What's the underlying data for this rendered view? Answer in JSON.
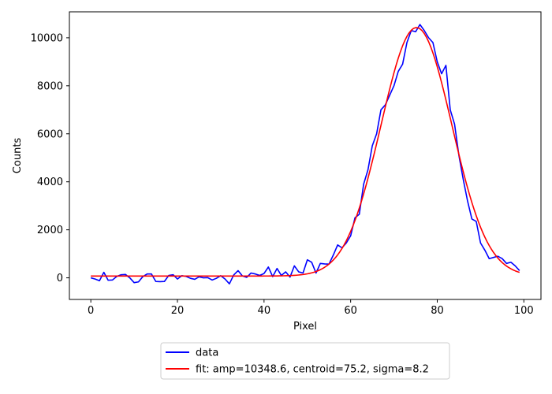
{
  "chart_data": {
    "type": "line",
    "xlabel": "Pixel",
    "ylabel": "Counts",
    "xlim": [
      -4.95,
      103.95
    ],
    "ylim": [
      -900,
      11080
    ],
    "xticks": [
      0,
      20,
      40,
      60,
      80,
      100
    ],
    "yticks": [
      0,
      2000,
      4000,
      6000,
      8000,
      10000
    ],
    "xtick_labels": [
      "0",
      "20",
      "40",
      "60",
      "80",
      "100"
    ],
    "ytick_labels": [
      "0",
      "2000",
      "4000",
      "6000",
      "8000",
      "10000"
    ],
    "grid": false,
    "legend_position": "below-center",
    "series": [
      {
        "name": "data",
        "color": "#0000ff",
        "x": [
          0,
          1,
          2,
          3,
          4,
          5,
          6,
          7,
          8,
          9,
          10,
          11,
          12,
          13,
          14,
          15,
          16,
          17,
          18,
          19,
          20,
          21,
          22,
          23,
          24,
          25,
          26,
          27,
          28,
          29,
          30,
          31,
          32,
          33,
          34,
          35,
          36,
          37,
          38,
          39,
          40,
          41,
          42,
          43,
          44,
          45,
          46,
          47,
          48,
          49,
          50,
          51,
          52,
          53,
          54,
          55,
          56,
          57,
          58,
          59,
          60,
          61,
          62,
          63,
          64,
          65,
          66,
          67,
          68,
          69,
          70,
          71,
          72,
          73,
          74,
          75,
          76,
          77,
          78,
          79,
          80,
          81,
          82,
          83,
          84,
          85,
          86,
          87,
          88,
          89,
          90,
          91,
          92,
          93,
          94,
          95,
          96,
          97,
          98,
          99
        ],
        "y": [
          0,
          -50,
          -120,
          230,
          -100,
          -90,
          60,
          130,
          140,
          0,
          -200,
          -170,
          50,
          160,
          160,
          -150,
          -160,
          -150,
          100,
          130,
          -50,
          90,
          60,
          -20,
          -60,
          40,
          0,
          10,
          -90,
          -20,
          90,
          -50,
          -250,
          120,
          300,
          80,
          20,
          200,
          160,
          100,
          180,
          450,
          50,
          390,
          100,
          250,
          30,
          500,
          250,
          200,
          750,
          650,
          200,
          600,
          580,
          570,
          950,
          1370,
          1250,
          1450,
          1750,
          2500,
          2650,
          3900,
          4500,
          5500,
          6000,
          7000,
          7200,
          7600,
          8000,
          8600,
          8900,
          9800,
          10300,
          10250,
          10550,
          10300,
          10000,
          9800,
          9000,
          8500,
          8850,
          7000,
          6400,
          5100,
          4100,
          3200,
          2450,
          2350,
          1450,
          1150,
          800,
          850,
          900,
          800,
          600,
          650,
          500,
          300
        ]
      },
      {
        "name": "fit: amp=10348.6, centroid=75.2, sigma=8.2",
        "color": "#ff0000",
        "amp": 10348.6,
        "centroid": 75.2,
        "sigma": 8.2,
        "offset": 75,
        "x_range": [
          0,
          99
        ]
      }
    ]
  }
}
